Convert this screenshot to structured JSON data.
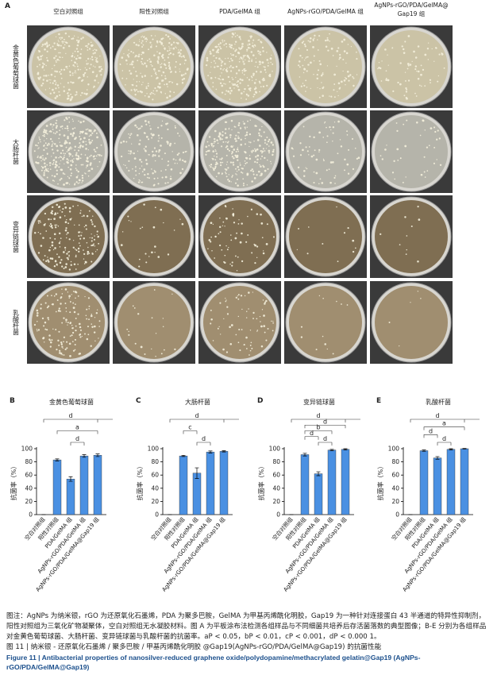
{
  "figure": {
    "panel_a": "A",
    "column_headers": [
      [
        "空白对照组"
      ],
      [
        "阳性对照组"
      ],
      [
        "PDA/GelMA 组"
      ],
      [
        "AgNPs-rGO/PDA/GelMA 组"
      ],
      [
        "AgNPs-rGO/PDA/GelMA@",
        "Gap19 组"
      ]
    ],
    "row_labels": [
      "金黄色葡萄球菌",
      "大肠杆菌",
      "变异链球菌",
      "乳酸杆菌"
    ],
    "caption": "图注：AgNPs 为纳米银，rGO 为还原氧化石墨烯，PDA 为聚多巴胺，GelMA 为甲基丙烯酰化明胶，Gap19 为一种针对连接蛋白 43 半通道的特异性抑制剂，阳性对照组为三氧化矿物凝聚体，空白对照组无水凝胶材料。图 A 为平板涂布法检测各组样品与不同细菌共培养后存活菌落数的典型图像；B-E 分别为各组样品对金黄色葡萄球菌、大肠杆菌、变异链球菌与乳酸杆菌的抗菌率。aP < 0.05，bP < 0.01，cP < 0.001，dP < 0.000 1。",
    "title_cn": "图 11 | 纳米银 - 还原氧化石墨烯 / 聚多巴胺 / 甲基丙烯酰化明胶 @Gap19(AgNPs-rGO/PDA/GelMA@Gap19) 的抗菌性能",
    "title_en": "Figure 11 | Antibacterial properties of nanosilver-reduced graphene oxide/polydopamine/methacrylated gelatin@Gap19 (AgNPs-rGO/PDA/GelMA@Gap19)"
  },
  "chart_data": [
    {
      "type": "bar",
      "panel": "B",
      "title": "金黄色葡萄球菌",
      "y_label": "抗菌率（%）",
      "color": "#4a90e2",
      "categories": [
        "空白对照组",
        "阳性对照组",
        "PDA/GelMA 组",
        "AgNPs-rGO/PDA/GelMA 组",
        "AgNPs-rGO/PDA/GelMA@Gap19 组"
      ],
      "values": [
        0,
        83,
        54,
        89,
        90
      ],
      "errors": [
        0,
        1.5,
        3.5,
        2,
        2
      ],
      "ylim": [
        0,
        100
      ],
      "yticks": [
        0,
        20,
        40,
        60,
        80,
        100
      ],
      "significance": [
        {
          "label": "d",
          "from": 0,
          "to": 4
        },
        {
          "label": "a",
          "from": 1,
          "to": 4
        },
        {
          "label": "d",
          "from": 2,
          "to": 3
        }
      ]
    },
    {
      "type": "bar",
      "panel": "C",
      "title": "大肠杆菌",
      "y_label": "抗菌率（%）",
      "color": "#4a90e2",
      "categories": [
        "空白对照组",
        "阳性对照组",
        "PDA/GelMA 组",
        "AgNPs-rGO/PDA/GelMA 组",
        "AgNPs-rGO/PDA/GelMA@Gap19 组"
      ],
      "values": [
        0,
        89,
        63,
        95,
        96
      ],
      "errors": [
        0,
        1,
        8,
        1.5,
        1
      ],
      "ylim": [
        0,
        100
      ],
      "yticks": [
        0,
        20,
        40,
        60,
        80,
        100
      ],
      "significance": [
        {
          "label": "d",
          "from": 0,
          "to": 4
        },
        {
          "label": "c",
          "from": 1,
          "to": 2
        },
        {
          "label": "d",
          "from": 2,
          "to": 3
        }
      ]
    },
    {
      "type": "bar",
      "panel": "D",
      "title": "变异链球菌",
      "y_label": "抗菌率（%）",
      "color": "#4a90e2",
      "categories": [
        "空白对照组",
        "阳性对照组",
        "PDA/GelMA 组",
        "AgNPs-rGO/PDA/GelMA 组",
        "AgNPs-rGO/PDA/GelMA@Gap19 组"
      ],
      "values": [
        0,
        91,
        62,
        98,
        99
      ],
      "errors": [
        0,
        2,
        3,
        1,
        1
      ],
      "ylim": [
        0,
        100
      ],
      "yticks": [
        0,
        20,
        40,
        60,
        80,
        100
      ],
      "significance": [
        {
          "label": "d",
          "from": 0,
          "to": 4
        },
        {
          "label": "d",
          "from": 1,
          "to": 4
        },
        {
          "label": "b",
          "from": 1,
          "to": 3
        },
        {
          "label": "d",
          "from": 1,
          "to": 2
        },
        {
          "label": "d",
          "from": 2,
          "to": 3
        }
      ]
    },
    {
      "type": "bar",
      "panel": "E",
      "title": "乳酸杆菌",
      "y_label": "抗菌率（%）",
      "color": "#4a90e2",
      "categories": [
        "空白对照组",
        "阳性对照组",
        "PDA/GelMA 组",
        "AgNPs-rGO/PDA/GelMA 组",
        "AgNPs-rGO/PDA/GelMA@Gap19 组"
      ],
      "values": [
        0,
        97,
        86,
        99,
        100
      ],
      "errors": [
        0,
        1,
        2,
        1,
        0.5
      ],
      "ylim": [
        0,
        100
      ],
      "yticks": [
        0,
        20,
        40,
        60,
        80,
        100
      ],
      "significance": [
        {
          "label": "d",
          "from": 0,
          "to": 4
        },
        {
          "label": "a",
          "from": 1,
          "to": 4
        },
        {
          "label": "d",
          "from": 1,
          "to": 2
        },
        {
          "label": "d",
          "from": 2,
          "to": 3
        }
      ]
    }
  ]
}
